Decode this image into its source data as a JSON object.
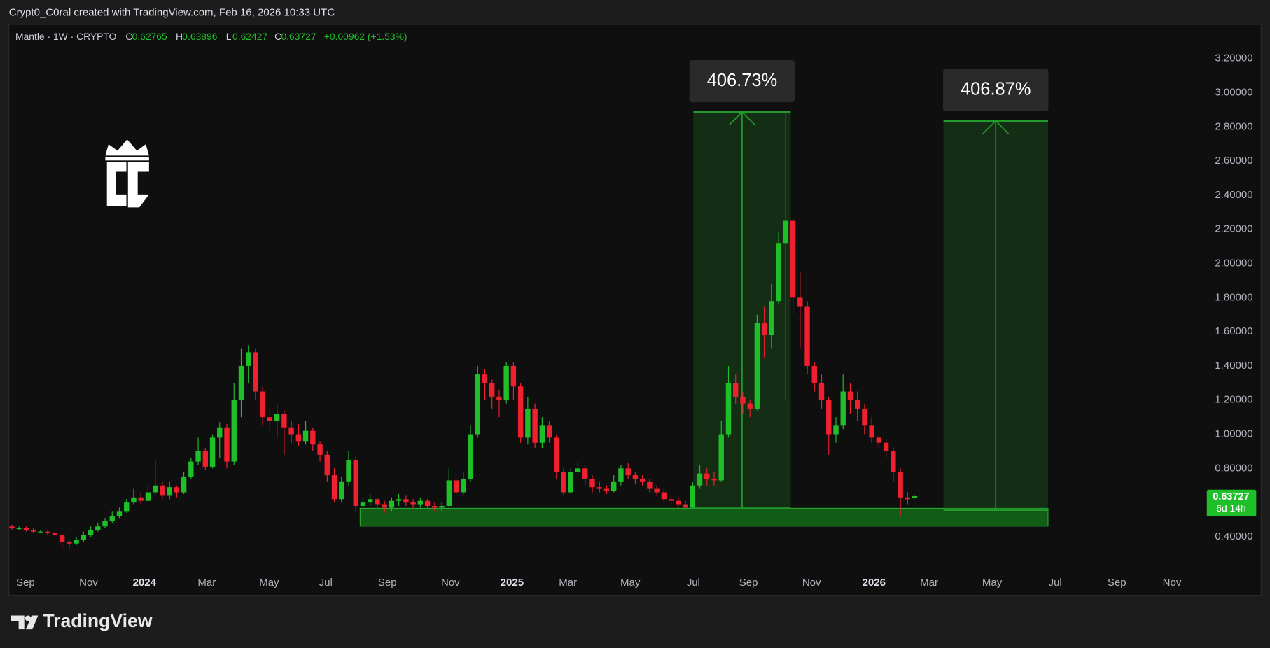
{
  "header": {
    "attribution": "Crypt0_C0ral created with TradingView.com, Feb 16, 2026 10:33 UTC"
  },
  "footer": {
    "brand": "TradingView"
  },
  "chart_data": {
    "type": "candlestick",
    "title": "Mantle · 1W · CRYPTO",
    "ohlc_labels": [
      "O",
      "H",
      "L",
      "C"
    ],
    "change": "+0.00962 (+1.53%)",
    "countdown": "6d 14h",
    "up_color": "#1fbf2a",
    "down_color": "#f0202e",
    "grid": false,
    "xlim": [
      -0.3,
      164.5
    ],
    "ylim": [
      0.19,
      3.4
    ],
    "xticks": [
      {
        "value": 1.9,
        "label": "Sep"
      },
      {
        "value": 10.7,
        "label": "Nov"
      },
      {
        "value": 18.5,
        "label": "2024"
      },
      {
        "value": 27.2,
        "label": "Mar"
      },
      {
        "value": 35.9,
        "label": "May"
      },
      {
        "value": 43.8,
        "label": "Jul"
      },
      {
        "value": 52.4,
        "label": "Sep"
      },
      {
        "value": 61.2,
        "label": "Nov"
      },
      {
        "value": 69.8,
        "label": "2025"
      },
      {
        "value": 77.6,
        "label": "Mar"
      },
      {
        "value": 86.3,
        "label": "May"
      },
      {
        "value": 95.1,
        "label": "Jul"
      },
      {
        "value": 102.8,
        "label": "Sep"
      },
      {
        "value": 111.6,
        "label": "Nov"
      },
      {
        "value": 120.3,
        "label": "2026"
      },
      {
        "value": 128,
        "label": "Mar"
      },
      {
        "value": 136.8,
        "label": "May"
      },
      {
        "value": 145.6,
        "label": "Jul"
      },
      {
        "value": 154.2,
        "label": "Sep"
      },
      {
        "value": 161.9,
        "label": "Nov"
      }
    ],
    "yticks": [
      {
        "value": 0.4,
        "label": "0.40000"
      },
      {
        "value": 0.8,
        "label": "0.80000"
      },
      {
        "value": 1.0,
        "label": "1.00000"
      },
      {
        "value": 1.2,
        "label": "1.20000"
      },
      {
        "value": 1.4,
        "label": "1.40000"
      },
      {
        "value": 1.6,
        "label": "1.60000"
      },
      {
        "value": 1.8,
        "label": "1.80000"
      },
      {
        "value": 2.0,
        "label": "2.00000"
      },
      {
        "value": 2.2,
        "label": "2.20000"
      },
      {
        "value": 2.4,
        "label": "2.40000"
      },
      {
        "value": 2.6,
        "label": "2.60000"
      },
      {
        "value": 2.8,
        "label": "2.80000"
      },
      {
        "value": 3.0,
        "label": "3.00000"
      },
      {
        "value": 3.2,
        "label": "3.20000"
      }
    ],
    "zone": {
      "x": [
        48.6,
        144.6
      ],
      "y": [
        0.462,
        0.566
      ]
    },
    "measures": [
      {
        "label": "406.73%",
        "x": [
          95.1,
          108.7
        ],
        "y": [
          0.566,
          2.887
        ]
      },
      {
        "label": "406.87%",
        "x": [
          130,
          144.6
        ],
        "y": [
          0.556,
          2.835
        ]
      }
    ],
    "x": [
      0,
      1,
      2,
      3,
      4,
      5,
      6,
      7,
      8,
      9,
      10,
      11,
      12,
      13,
      14,
      15,
      16,
      17,
      18,
      19,
      20,
      21,
      22,
      23,
      24,
      25,
      26,
      27,
      28,
      29,
      30,
      31,
      32,
      33,
      34,
      35,
      36,
      37,
      38,
      39,
      40,
      41,
      42,
      43,
      44,
      45,
      46,
      47,
      48,
      49,
      50,
      51,
      52,
      53,
      54,
      55,
      56,
      57,
      58,
      59,
      60,
      61,
      62,
      63,
      64,
      65,
      66,
      67,
      68,
      69,
      70,
      71,
      72,
      73,
      74,
      75,
      76,
      77,
      78,
      79,
      80,
      81,
      82,
      83,
      84,
      85,
      86,
      87,
      88,
      89,
      90,
      91,
      92,
      93,
      94,
      95,
      96,
      97,
      98,
      99,
      100,
      101,
      102,
      103,
      104,
      105,
      106,
      107,
      108,
      109,
      110,
      111,
      112,
      113,
      114,
      115,
      116,
      117,
      118,
      119,
      120,
      121,
      122,
      123,
      124,
      125,
      126
    ],
    "open": [
      0.46,
      0.45,
      0.45,
      0.44,
      0.43,
      0.43,
      0.42,
      0.41,
      0.37,
      0.36,
      0.38,
      0.41,
      0.44,
      0.46,
      0.49,
      0.52,
      0.55,
      0.6,
      0.63,
      0.61,
      0.66,
      0.7,
      0.64,
      0.69,
      0.66,
      0.75,
      0.84,
      0.9,
      0.81,
      0.98,
      1.04,
      0.84,
      1.2,
      1.4,
      1.48,
      1.25,
      1.1,
      1.08,
      1.12,
      1.04,
      1.0,
      0.96,
      1.02,
      0.94,
      0.88,
      0.76,
      0.62,
      0.72,
      0.85,
      0.58,
      0.6,
      0.62,
      0.59,
      0.57,
      0.61,
      0.62,
      0.6,
      0.59,
      0.61,
      0.58,
      0.57,
      0.58,
      0.73,
      0.66,
      0.74,
      1.0,
      1.35,
      1.3,
      1.22,
      1.2,
      1.4,
      1.28,
      0.98,
      1.15,
      0.95,
      1.05,
      0.98,
      0.78,
      0.66,
      0.78,
      0.8,
      0.74,
      0.69,
      0.68,
      0.67,
      0.72,
      0.8,
      0.76,
      0.74,
      0.72,
      0.68,
      0.66,
      0.62,
      0.61,
      0.59,
      0.57,
      0.7,
      0.77,
      0.74,
      0.73,
      1.0,
      1.3,
      1.22,
      1.18,
      1.15,
      1.65,
      1.58,
      1.78,
      2.12,
      2.25,
      1.8,
      1.75,
      1.4,
      1.3,
      1.2,
      1.0,
      1.05,
      1.25,
      1.2,
      1.15,
      1.05,
      0.98,
      0.95,
      0.9,
      0.78,
      0.63,
      0.62765
    ],
    "high": [
      0.47,
      0.46,
      0.46,
      0.45,
      0.44,
      0.44,
      0.43,
      0.42,
      0.38,
      0.4,
      0.43,
      0.46,
      0.48,
      0.51,
      0.55,
      0.57,
      0.62,
      0.68,
      0.66,
      0.7,
      0.85,
      0.72,
      0.72,
      0.7,
      0.78,
      0.86,
      0.98,
      0.92,
      1.0,
      1.07,
      1.06,
      1.3,
      1.5,
      1.52,
      1.5,
      1.28,
      1.15,
      1.18,
      1.14,
      1.08,
      1.06,
      1.08,
      1.04,
      0.96,
      0.9,
      0.8,
      0.75,
      0.9,
      0.87,
      0.63,
      0.65,
      0.63,
      0.61,
      0.63,
      0.65,
      0.64,
      0.62,
      0.63,
      0.62,
      0.6,
      0.6,
      0.8,
      0.75,
      0.78,
      1.05,
      1.4,
      1.38,
      1.32,
      1.26,
      1.42,
      1.42,
      1.3,
      1.22,
      1.18,
      1.1,
      1.08,
      1.0,
      0.8,
      0.8,
      0.84,
      0.82,
      0.76,
      0.72,
      0.7,
      0.76,
      0.82,
      0.83,
      0.78,
      0.76,
      0.74,
      0.7,
      0.68,
      0.64,
      0.63,
      0.61,
      0.72,
      0.82,
      0.8,
      0.78,
      1.08,
      1.4,
      1.35,
      1.25,
      1.2,
      1.7,
      1.75,
      1.88,
      2.18,
      2.88,
      2.25,
      1.95,
      1.78,
      1.42,
      1.35,
      1.22,
      1.1,
      1.35,
      1.3,
      1.25,
      1.18,
      1.1,
      1.0,
      0.97,
      0.92,
      0.8,
      0.66,
      0.63896
    ],
    "low": [
      0.44,
      0.44,
      0.43,
      0.42,
      0.42,
      0.41,
      0.4,
      0.33,
      0.33,
      0.35,
      0.37,
      0.4,
      0.43,
      0.45,
      0.48,
      0.51,
      0.54,
      0.59,
      0.59,
      0.6,
      0.64,
      0.62,
      0.62,
      0.63,
      0.65,
      0.74,
      0.82,
      0.79,
      0.8,
      0.86,
      0.8,
      0.82,
      1.1,
      1.3,
      1.2,
      1.05,
      1.02,
      0.98,
      0.88,
      0.95,
      0.93,
      0.94,
      0.9,
      0.84,
      0.72,
      0.6,
      0.6,
      0.7,
      0.55,
      0.56,
      0.58,
      0.56,
      0.54,
      0.55,
      0.58,
      0.58,
      0.56,
      0.57,
      0.56,
      0.55,
      0.55,
      0.57,
      0.64,
      0.64,
      0.72,
      0.98,
      1.2,
      1.15,
      1.1,
      1.18,
      1.2,
      0.95,
      0.94,
      0.92,
      0.92,
      0.95,
      0.74,
      0.64,
      0.65,
      0.76,
      0.7,
      0.66,
      0.66,
      0.65,
      0.66,
      0.7,
      0.74,
      0.71,
      0.7,
      0.66,
      0.64,
      0.6,
      0.59,
      0.57,
      0.56,
      0.56,
      0.68,
      0.7,
      0.7,
      0.72,
      0.98,
      1.18,
      1.12,
      1.1,
      1.14,
      1.45,
      1.5,
      1.76,
      1.2,
      1.7,
      1.5,
      1.35,
      1.25,
      1.15,
      0.88,
      0.95,
      1.03,
      1.12,
      1.08,
      1.0,
      0.95,
      0.92,
      0.86,
      0.72,
      0.52,
      0.59,
      0.62427
    ],
    "close": [
      0.45,
      0.45,
      0.44,
      0.43,
      0.43,
      0.42,
      0.41,
      0.37,
      0.36,
      0.38,
      0.41,
      0.44,
      0.46,
      0.49,
      0.52,
      0.55,
      0.6,
      0.63,
      0.61,
      0.66,
      0.7,
      0.64,
      0.69,
      0.66,
      0.75,
      0.84,
      0.9,
      0.81,
      0.98,
      1.04,
      0.84,
      1.2,
      1.4,
      1.48,
      1.25,
      1.1,
      1.08,
      1.12,
      1.04,
      1.0,
      0.96,
      1.02,
      0.94,
      0.88,
      0.76,
      0.62,
      0.72,
      0.85,
      0.58,
      0.6,
      0.62,
      0.59,
      0.57,
      0.61,
      0.62,
      0.6,
      0.59,
      0.61,
      0.58,
      0.57,
      0.58,
      0.73,
      0.66,
      0.74,
      1.0,
      1.35,
      1.3,
      1.22,
      1.2,
      1.4,
      1.28,
      0.98,
      1.15,
      0.95,
      1.05,
      0.98,
      0.78,
      0.66,
      0.78,
      0.8,
      0.74,
      0.69,
      0.68,
      0.67,
      0.72,
      0.8,
      0.76,
      0.74,
      0.72,
      0.68,
      0.66,
      0.62,
      0.61,
      0.59,
      0.57,
      0.7,
      0.77,
      0.74,
      0.73,
      1.0,
      1.3,
      1.22,
      1.18,
      1.15,
      1.65,
      1.58,
      1.78,
      2.12,
      2.25,
      1.8,
      1.75,
      1.4,
      1.3,
      1.2,
      1.0,
      1.05,
      1.25,
      1.2,
      1.15,
      1.05,
      0.98,
      0.95,
      0.9,
      0.78,
      0.63,
      0.62,
      0.63727
    ]
  }
}
